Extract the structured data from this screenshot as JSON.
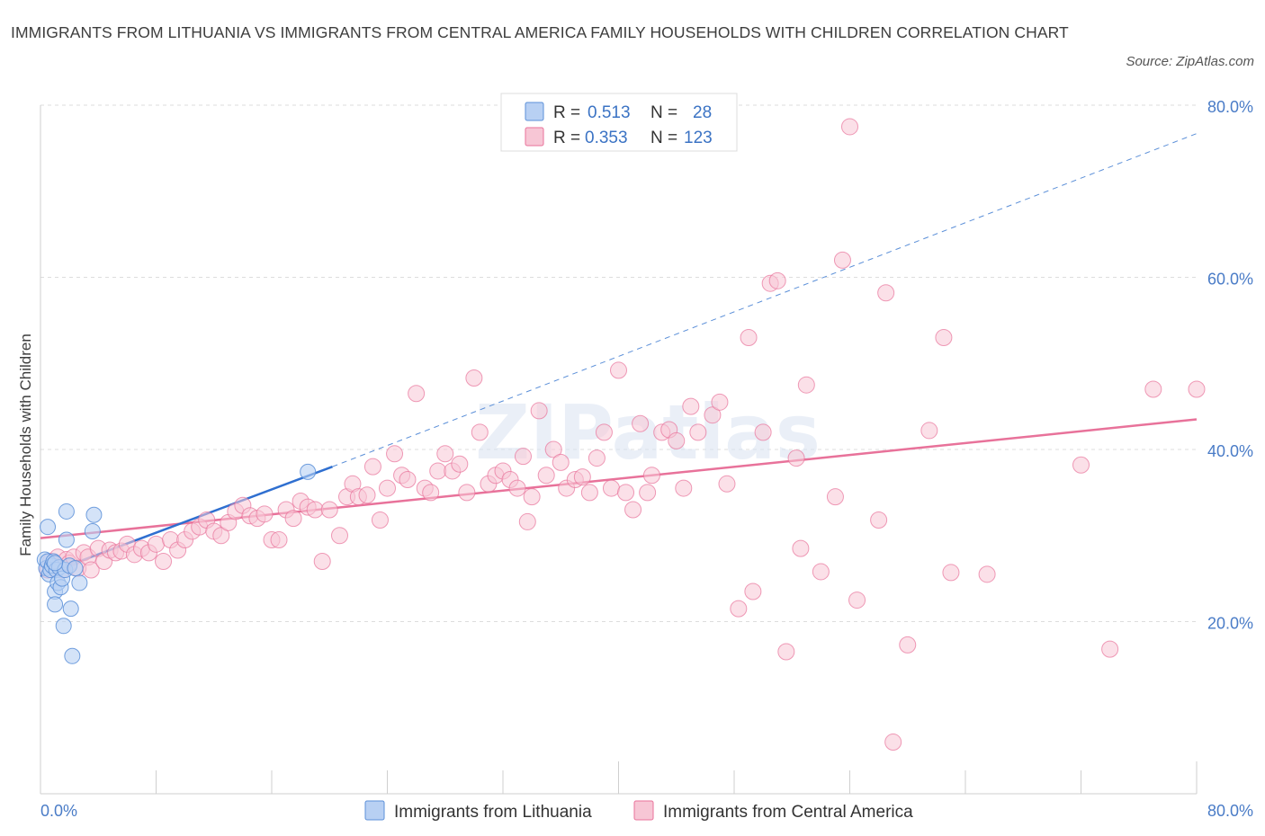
{
  "header": {
    "title": "IMMIGRANTS FROM LITHUANIA VS IMMIGRANTS FROM CENTRAL AMERICA FAMILY HOUSEHOLDS WITH CHILDREN CORRELATION CHART",
    "source": "Source: ZipAtlas.com"
  },
  "watermark": "ZIPatlas",
  "colors": {
    "lithuania": "#5b8fd8",
    "lithuania_fill": "#b8d0f3",
    "central_america": "#e8729a",
    "central_america_fill": "#f7c6d5",
    "tick_label": "#4a7cc7",
    "grid": "#dddddd"
  },
  "legend": {
    "rows": [
      {
        "r_label": "R = ",
        "r_value": "0.513",
        "n_label": "N = ",
        "n_value": "28"
      },
      {
        "r_label": "R = ",
        "r_value": "0.353",
        "n_label": "N = ",
        "n_value": "123"
      }
    ]
  },
  "chart_data": {
    "type": "scatter",
    "title": "IMMIGRANTS FROM LITHUANIA VS IMMIGRANTS FROM CENTRAL AMERICA FAMILY HOUSEHOLDS WITH CHILDREN CORRELATION CHART",
    "xlabel": "",
    "ylabel": "Family Households with Children",
    "xlim": [
      0,
      80
    ],
    "ylim": [
      0,
      80
    ],
    "x_tick_labels": [
      "0.0%",
      "80.0%"
    ],
    "y_ticks": [
      20,
      40,
      60,
      80
    ],
    "y_tick_labels": [
      "20.0%",
      "40.0%",
      "60.0%",
      "80.0%"
    ],
    "grid": true,
    "legend_position": "top-center",
    "series": [
      {
        "name": "Immigrants from Lithuania",
        "R": 0.513,
        "N": 28,
        "trend": {
          "x0": 0,
          "y0": 25.3,
          "x1": 20.2,
          "y1": 38.0,
          "extended_to_x": 80,
          "extended_y1": 76.7
        },
        "points": [
          [
            0.3,
            27.2
          ],
          [
            0.4,
            26.2
          ],
          [
            0.5,
            31.0
          ],
          [
            0.5,
            27.0
          ],
          [
            0.6,
            25.5
          ],
          [
            0.7,
            26.0
          ],
          [
            0.8,
            26.5
          ],
          [
            0.9,
            27.0
          ],
          [
            1.0,
            23.5
          ],
          [
            1.0,
            22.0
          ],
          [
            1.1,
            26.0
          ],
          [
            1.2,
            24.5
          ],
          [
            1.3,
            26.3
          ],
          [
            1.4,
            24.0
          ],
          [
            1.5,
            25.0
          ],
          [
            1.6,
            19.5
          ],
          [
            1.7,
            26.0
          ],
          [
            1.8,
            29.5
          ],
          [
            1.8,
            32.8
          ],
          [
            2.0,
            26.5
          ],
          [
            2.1,
            21.5
          ],
          [
            2.2,
            16.0
          ],
          [
            2.4,
            26.2
          ],
          [
            2.7,
            24.5
          ],
          [
            3.6,
            30.5
          ],
          [
            3.7,
            32.4
          ],
          [
            18.5,
            37.4
          ],
          [
            1.0,
            26.8
          ]
        ]
      },
      {
        "name": "Immigrants from Central America",
        "R": 0.353,
        "N": 123,
        "trend": {
          "x0": 0,
          "y0": 29.7,
          "x1": 80,
          "y1": 43.5
        },
        "points": [
          [
            0.5,
            26.0
          ],
          [
            0.7,
            27.0
          ],
          [
            1.0,
            26.5
          ],
          [
            1.2,
            27.5
          ],
          [
            1.5,
            26.0
          ],
          [
            1.8,
            27.2
          ],
          [
            2.0,
            26.8
          ],
          [
            2.3,
            27.5
          ],
          [
            2.6,
            26.2
          ],
          [
            3.0,
            28.0
          ],
          [
            3.3,
            27.5
          ],
          [
            3.5,
            26.0
          ],
          [
            4.0,
            28.5
          ],
          [
            4.4,
            27.0
          ],
          [
            4.8,
            28.3
          ],
          [
            5.2,
            28.0
          ],
          [
            5.6,
            28.2
          ],
          [
            6.0,
            29.0
          ],
          [
            6.5,
            27.8
          ],
          [
            7.0,
            28.5
          ],
          [
            7.5,
            28.0
          ],
          [
            8.0,
            29.0
          ],
          [
            8.5,
            27.0
          ],
          [
            9.0,
            29.5
          ],
          [
            9.5,
            28.3
          ],
          [
            10.0,
            29.5
          ],
          [
            10.5,
            30.5
          ],
          [
            11.0,
            31.0
          ],
          [
            11.5,
            31.8
          ],
          [
            12.0,
            30.5
          ],
          [
            12.5,
            30.0
          ],
          [
            13.0,
            31.5
          ],
          [
            13.5,
            32.8
          ],
          [
            14.0,
            33.5
          ],
          [
            14.5,
            32.3
          ],
          [
            15.0,
            32.0
          ],
          [
            15.5,
            32.5
          ],
          [
            16.0,
            29.5
          ],
          [
            16.5,
            29.5
          ],
          [
            17.0,
            33.0
          ],
          [
            17.5,
            32.0
          ],
          [
            18.0,
            34.0
          ],
          [
            18.5,
            33.3
          ],
          [
            19.0,
            33.0
          ],
          [
            19.5,
            27.0
          ],
          [
            20.0,
            33.0
          ],
          [
            20.7,
            30.0
          ],
          [
            21.2,
            34.5
          ],
          [
            21.6,
            36.0
          ],
          [
            22.0,
            34.5
          ],
          [
            22.6,
            34.7
          ],
          [
            23.0,
            38.0
          ],
          [
            23.5,
            31.8
          ],
          [
            24.0,
            35.5
          ],
          [
            24.5,
            39.5
          ],
          [
            25.0,
            37.0
          ],
          [
            25.4,
            36.5
          ],
          [
            26.0,
            46.5
          ],
          [
            26.6,
            35.5
          ],
          [
            27.0,
            35.0
          ],
          [
            27.5,
            37.5
          ],
          [
            28.0,
            39.5
          ],
          [
            28.5,
            37.5
          ],
          [
            29.0,
            38.3
          ],
          [
            29.5,
            35.0
          ],
          [
            30.0,
            48.3
          ],
          [
            30.4,
            42.0
          ],
          [
            31.0,
            36.0
          ],
          [
            31.5,
            37.0
          ],
          [
            32.0,
            37.5
          ],
          [
            32.5,
            36.5
          ],
          [
            33.0,
            35.5
          ],
          [
            33.4,
            39.2
          ],
          [
            33.7,
            31.6
          ],
          [
            34.0,
            34.5
          ],
          [
            34.5,
            44.5
          ],
          [
            35.0,
            37.0
          ],
          [
            35.5,
            40.0
          ],
          [
            36.0,
            38.5
          ],
          [
            36.4,
            35.5
          ],
          [
            37.0,
            36.5
          ],
          [
            37.5,
            36.8
          ],
          [
            38.0,
            35.0
          ],
          [
            38.5,
            39.0
          ],
          [
            39.0,
            42.0
          ],
          [
            39.5,
            35.5
          ],
          [
            40.0,
            49.2
          ],
          [
            40.5,
            35.0
          ],
          [
            41.0,
            33.0
          ],
          [
            41.5,
            43.0
          ],
          [
            42.0,
            35.0
          ],
          [
            42.3,
            37.0
          ],
          [
            43.0,
            42.0
          ],
          [
            43.5,
            42.3
          ],
          [
            44.0,
            41.0
          ],
          [
            44.5,
            35.5
          ],
          [
            45.0,
            45.0
          ],
          [
            45.5,
            42.0
          ],
          [
            46.5,
            44.0
          ],
          [
            47.0,
            45.5
          ],
          [
            47.5,
            36.0
          ],
          [
            48.3,
            21.5
          ],
          [
            49.0,
            53.0
          ],
          [
            49.3,
            23.5
          ],
          [
            50.0,
            42.0
          ],
          [
            50.5,
            59.3
          ],
          [
            51.0,
            59.6
          ],
          [
            51.6,
            16.5
          ],
          [
            52.3,
            39.0
          ],
          [
            52.6,
            28.5
          ],
          [
            53.0,
            47.5
          ],
          [
            54.0,
            25.8
          ],
          [
            55.0,
            34.5
          ],
          [
            55.5,
            62.0
          ],
          [
            56.0,
            77.5
          ],
          [
            56.5,
            22.5
          ],
          [
            58.0,
            31.8
          ],
          [
            58.5,
            58.2
          ],
          [
            59.0,
            6.0
          ],
          [
            60.0,
            17.3
          ],
          [
            61.5,
            42.2
          ],
          [
            62.5,
            53.0
          ],
          [
            63.0,
            25.7
          ],
          [
            65.5,
            25.5
          ],
          [
            72.0,
            38.2
          ],
          [
            74.0,
            16.8
          ],
          [
            77.0,
            47.0
          ],
          [
            80.0,
            47.0
          ]
        ]
      }
    ]
  }
}
